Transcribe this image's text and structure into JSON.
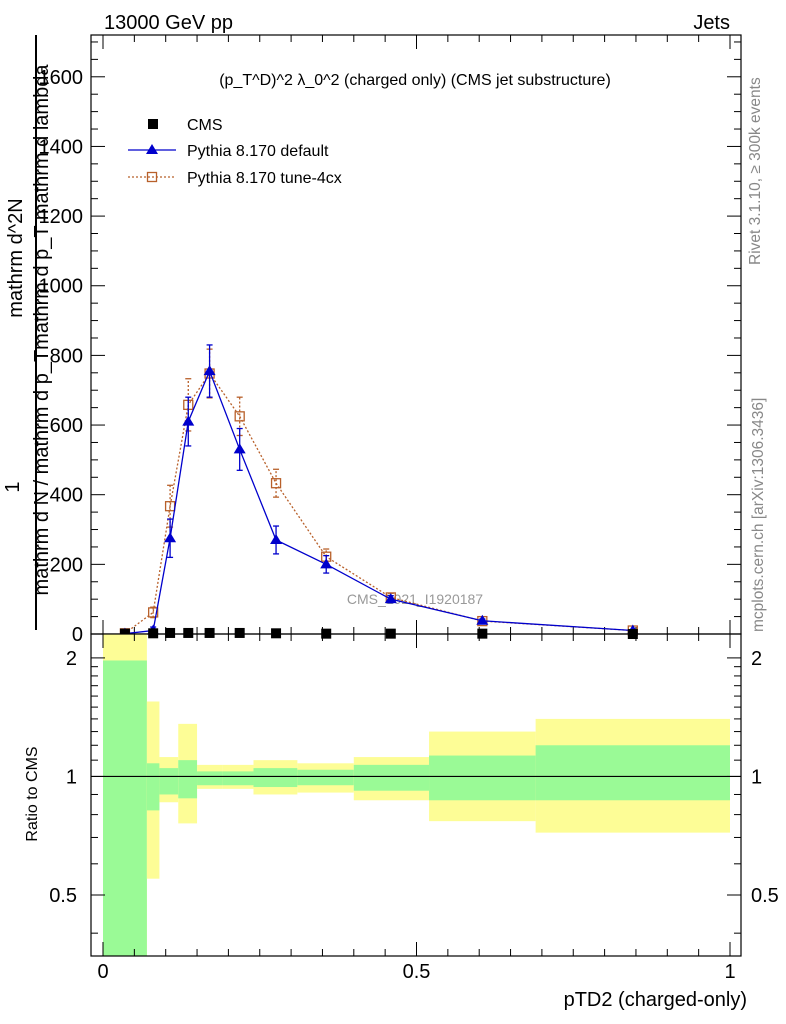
{
  "header": {
    "left": "13000 GeV pp",
    "right": "Jets"
  },
  "side_labels": {
    "rivet": "Rivet 3.1.10, ≥ 300k events",
    "mcplots": "mcplots.cern.ch [arXiv:1306.3436]"
  },
  "watermark": "CMS_2021_I1920187",
  "colors": {
    "cms": "#000000",
    "default": "#0000cc",
    "tune": "#b8602a",
    "band_inner": "#9afa96",
    "band_outer": "#fdfd96"
  },
  "chart_data": [
    {
      "type": "line",
      "title": "(p_T^D)^2 λ_0^2 (charged only) (CMS jet substructure)",
      "ylabel_top": "1",
      "ylabel_num": "mathrm d^2N",
      "ylabel_den": "mathrm d N / mathrm d p_Tmathrm d p_T mathrm d lambda",
      "xlim": [
        0,
        1
      ],
      "ylim": [
        0,
        1720
      ],
      "yticks": [
        0,
        200,
        400,
        600,
        800,
        1000,
        1200,
        1400,
        1600
      ],
      "ytick_labels": [
        "0",
        "200",
        "400",
        "600",
        "800",
        "1000",
        "1200",
        "1400",
        "1600"
      ],
      "legend_position": "top-left",
      "series": [
        {
          "name": "CMS",
          "marker": "filled-square",
          "x": [
            0.035,
            0.08,
            0.107,
            0.136,
            0.17,
            0.218,
            0.276,
            0.356,
            0.459,
            0.605,
            0.845
          ],
          "y": [
            1,
            2,
            3,
            3,
            3,
            3,
            2,
            1,
            1,
            1,
            0
          ]
        },
        {
          "name": "Pythia 8.170 default",
          "marker": "filled-triangle",
          "x": [
            0.035,
            0.08,
            0.107,
            0.136,
            0.17,
            0.218,
            0.276,
            0.356,
            0.459,
            0.605,
            0.845
          ],
          "y": [
            1,
            10,
            275,
            610,
            755,
            530,
            270,
            200,
            100,
            38,
            10
          ],
          "err": [
            0,
            10,
            55,
            70,
            75,
            60,
            40,
            25,
            10,
            5,
            2
          ]
        },
        {
          "name": "Pythia 8.170 tune-4cx",
          "marker": "open-square",
          "x": [
            0.035,
            0.08,
            0.107,
            0.136,
            0.17,
            0.218,
            0.276,
            0.356,
            0.459,
            0.605,
            0.845
          ],
          "y": [
            2,
            62,
            367,
            658,
            748,
            625,
            433,
            222,
            105,
            37,
            10
          ],
          "err": [
            0,
            15,
            60,
            75,
            70,
            55,
            40,
            22,
            12,
            5,
            2
          ]
        }
      ]
    },
    {
      "type": "area",
      "ylabel": "Ratio to CMS",
      "xlabel": "pTD2 (charged-only)",
      "xlim": [
        0,
        1
      ],
      "ylim": [
        0.35,
        2.3
      ],
      "xticks": [
        0,
        0.5,
        1
      ],
      "xtick_labels": [
        "0",
        "0.5",
        "1"
      ],
      "yticks": [
        0.5,
        1,
        2
      ],
      "ytick_labels": [
        "0.5",
        "1",
        "2"
      ],
      "bins": [
        {
          "x0": 0.0,
          "x1": 0.07,
          "inner": [
            0.0,
            1.97
          ],
          "outer": [
            0.0,
            3.0
          ]
        },
        {
          "x0": 0.07,
          "x1": 0.09,
          "inner": [
            0.82,
            1.08
          ],
          "outer": [
            0.55,
            1.55
          ]
        },
        {
          "x0": 0.09,
          "x1": 0.12,
          "inner": [
            0.9,
            1.05
          ],
          "outer": [
            0.86,
            1.12
          ]
        },
        {
          "x0": 0.12,
          "x1": 0.15,
          "inner": [
            0.88,
            1.1
          ],
          "outer": [
            0.76,
            1.36
          ]
        },
        {
          "x0": 0.15,
          "x1": 0.19,
          "inner": [
            0.95,
            1.03
          ],
          "outer": [
            0.93,
            1.07
          ]
        },
        {
          "x0": 0.19,
          "x1": 0.24,
          "inner": [
            0.95,
            1.03
          ],
          "outer": [
            0.93,
            1.07
          ]
        },
        {
          "x0": 0.24,
          "x1": 0.31,
          "inner": [
            0.94,
            1.05
          ],
          "outer": [
            0.9,
            1.1
          ]
        },
        {
          "x0": 0.31,
          "x1": 0.4,
          "inner": [
            0.95,
            1.04
          ],
          "outer": [
            0.91,
            1.08
          ]
        },
        {
          "x0": 0.4,
          "x1": 0.52,
          "inner": [
            0.92,
            1.07
          ],
          "outer": [
            0.87,
            1.12
          ]
        },
        {
          "x0": 0.52,
          "x1": 0.69,
          "inner": [
            0.87,
            1.13
          ],
          "outer": [
            0.77,
            1.3
          ]
        },
        {
          "x0": 0.69,
          "x1": 1.0,
          "inner": [
            0.87,
            1.2
          ],
          "outer": [
            0.72,
            1.4
          ]
        }
      ]
    }
  ]
}
